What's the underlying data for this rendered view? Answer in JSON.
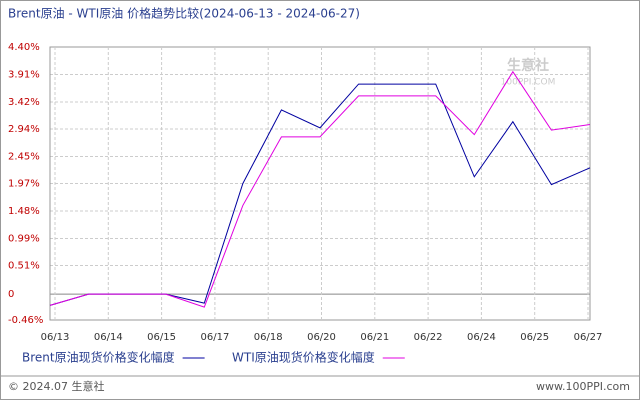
{
  "chart_data": {
    "type": "line",
    "title": "Brent原油 - WTI原油 价格趋势比较(2024-06-13 - 2024-06-27)",
    "x_labels": [
      "06/13",
      "06/14",
      "06/15",
      "06/17",
      "06/18",
      "06/20",
      "06/21",
      "06/22",
      "06/24",
      "06/25",
      "06/27"
    ],
    "series": [
      {
        "name": "Brent原油现货价格变化幅度",
        "color": "#0000a0",
        "values": [
          -0.2,
          0,
          0,
          0,
          -0.16,
          1.97,
          3.28,
          2.96,
          3.74,
          3.74,
          3.74,
          2.09,
          3.07,
          1.95,
          2.25
        ]
      },
      {
        "name": "WTI原油现货价格变化幅度",
        "color": "#e000e0",
        "values": [
          -0.2,
          0,
          0,
          0,
          -0.23,
          1.58,
          2.8,
          2.8,
          3.53,
          3.53,
          3.53,
          2.84,
          3.96,
          2.92,
          3.02
        ]
      }
    ],
    "ylim": [
      -0.46,
      4.4
    ],
    "yticks": [
      {
        "value": 4.4,
        "label": "4.40%"
      },
      {
        "value": 3.91,
        "label": "3.91%"
      },
      {
        "value": 3.42,
        "label": "3.42%"
      },
      {
        "value": 2.94,
        "label": "2.94%"
      },
      {
        "value": 2.45,
        "label": "2.45%"
      },
      {
        "value": 1.97,
        "label": "1.97%"
      },
      {
        "value": 1.48,
        "label": "1.48%"
      },
      {
        "value": 0.99,
        "label": "0.99%"
      },
      {
        "value": 0.51,
        "label": "0.51%"
      },
      0,
      {
        "value": -0.46,
        "label": "-0.46%"
      }
    ],
    "grid": true,
    "watermark": {
      "logo": "生意社",
      "site": "100PPI.COM"
    },
    "footer": {
      "left": "© 2024.07 生意社",
      "right": "www.100PPI.com"
    }
  }
}
